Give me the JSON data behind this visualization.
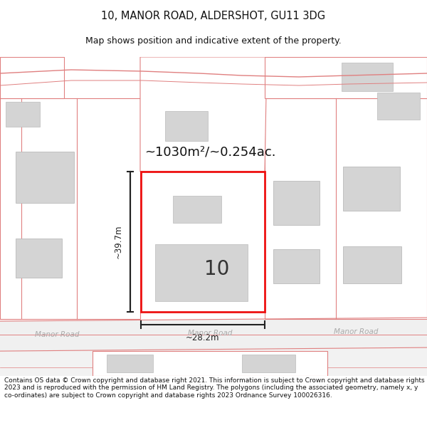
{
  "title": "10, MANOR ROAD, ALDERSHOT, GU11 3DG",
  "subtitle": "Map shows position and indicative extent of the property.",
  "footer": "Contains OS data © Crown copyright and database right 2021. This information is subject to Crown copyright and database rights 2023 and is reproduced with the permission of HM Land Registry. The polygons (including the associated geometry, namely x, y co-ordinates) are subject to Crown copyright and database rights 2023 Ordnance Survey 100026316.",
  "area_label": "~1030m²/~0.254ac.",
  "number_label": "10",
  "width_label": "~28.2m",
  "height_label": "~39.7m",
  "road_label_left": "Manor Road",
  "road_label_right": "Manor Road",
  "road_label_center": "Manor Road",
  "bg_color": "#ffffff",
  "building_fill": "#d4d4d4",
  "boundary_color": "#e08080",
  "highlight_color": "#ee1111",
  "dim_line_color": "#222222",
  "road_text_color": "#aaaaaa",
  "title_fontsize": 10.5,
  "subtitle_fontsize": 9,
  "footer_fontsize": 6.5
}
